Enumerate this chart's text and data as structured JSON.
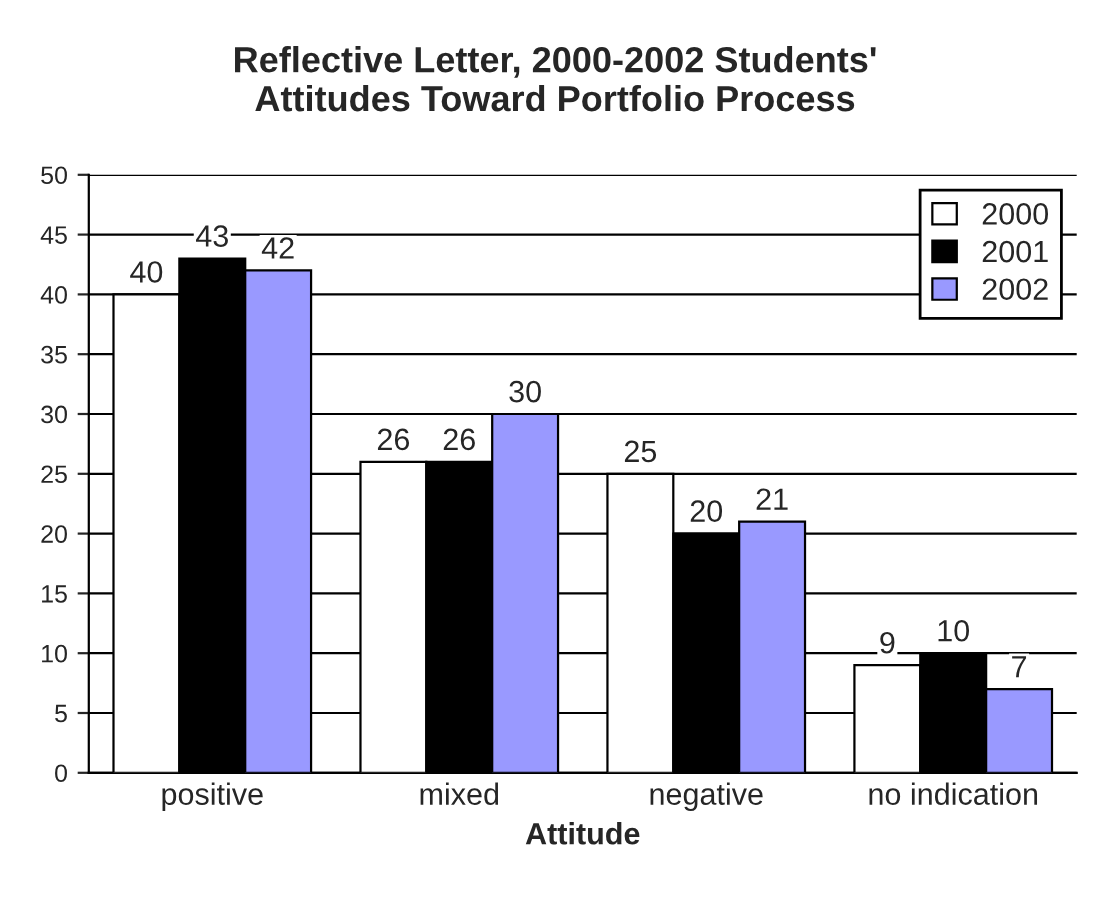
{
  "chart_data": {
    "type": "bar",
    "title": "Reflective Letter, 2000-2002 Students'\nAttitudes Toward Portfolio Process",
    "xlabel": "Attitude",
    "categories": [
      "positive",
      "mixed",
      "negative",
      "no indication"
    ],
    "series": [
      {
        "name": "2000",
        "color": "#ffffff",
        "values": [
          40,
          26,
          25,
          9
        ]
      },
      {
        "name": "2001",
        "color": "#000000",
        "values": [
          43,
          26,
          20,
          10
        ]
      },
      {
        "name": "2002",
        "color": "#9999ff",
        "values": [
          42,
          30,
          21,
          7
        ]
      }
    ],
    "ylim": [
      0,
      50
    ],
    "yticks": [
      0,
      5,
      10,
      15,
      20,
      25,
      30,
      35,
      40,
      45,
      50
    ],
    "grid": "y",
    "legend": "top right",
    "data_labels": true
  }
}
